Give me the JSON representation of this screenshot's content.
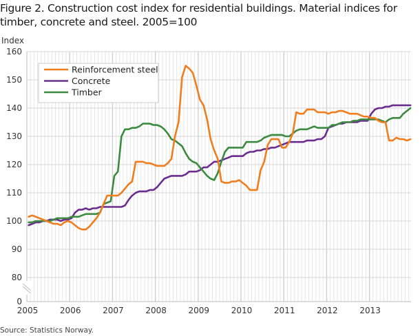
{
  "title": "Figure 2. Construction cost index for residential buildings. Material indices for timber, concrete and steel. 2005=100",
  "source": "Source: Statistics Norway.",
  "chart_data": {
    "type": "line",
    "title": "Figure 2. Construction cost index for residential buildings. Material indices for timber, concrete and steel. 2005=100",
    "ylabel": "Index",
    "xlabel": "",
    "ylim": [
      80,
      160
    ],
    "axis_break": "between 0 and 80",
    "yticks": [
      0,
      80,
      90,
      100,
      110,
      120,
      130,
      140,
      150,
      160
    ],
    "xticks": [
      "2005",
      "2006",
      "2007",
      "2008",
      "2009",
      "2010",
      "2011",
      "2012",
      "2013"
    ],
    "x_start": "2005-01",
    "x_frequency": "monthly",
    "grid": true,
    "legend": "top-left",
    "series": [
      {
        "name": "Reinforcement steel",
        "color": "#f07d1e",
        "values": [
          101.5,
          102,
          101.5,
          101,
          100.5,
          100,
          99.5,
          99,
          99,
          98.5,
          99.5,
          100,
          99.5,
          98.5,
          97.5,
          97,
          97,
          98,
          99.5,
          101,
          103,
          106,
          109,
          109,
          109,
          109,
          110,
          111.5,
          113,
          114,
          121,
          121,
          121,
          120.5,
          120.5,
          120,
          119.5,
          119.5,
          119.5,
          120.5,
          122,
          130,
          135,
          151,
          155,
          154,
          152.5,
          148,
          143,
          141,
          136,
          129,
          125,
          122,
          114,
          113.5,
          113.5,
          114,
          114,
          114.5,
          113.5,
          112.5,
          111,
          111,
          111,
          118,
          121,
          127,
          129,
          129,
          129,
          126,
          126,
          128,
          131,
          138.5,
          138,
          138,
          139.5,
          139.5,
          139.5,
          138.5,
          138.5,
          138.5,
          138,
          138.5,
          138.5,
          139,
          139,
          138.5,
          138,
          138,
          138,
          137.5,
          137,
          137,
          136.5,
          136.5,
          135.5,
          135,
          135,
          128.5,
          128.5,
          129.5,
          129,
          129,
          128.5,
          129
        ]
      },
      {
        "name": "Concrete",
        "color": "#6a2d8f",
        "values": [
          98.5,
          99,
          99.5,
          99.5,
          100,
          100,
          100.5,
          100.5,
          100.5,
          100,
          100.5,
          100.5,
          101,
          103,
          104,
          104,
          104.5,
          104,
          104.5,
          104.5,
          105,
          105,
          105,
          105,
          105,
          105,
          105,
          105.5,
          107.5,
          109,
          110,
          110.5,
          110.5,
          110.5,
          111,
          111,
          112,
          113.5,
          115,
          115.5,
          116,
          116,
          116,
          116,
          116.5,
          117.5,
          117.5,
          117.5,
          118,
          119,
          119,
          120,
          121,
          121,
          121.5,
          122,
          122.5,
          123,
          123,
          123,
          123,
          124,
          124.5,
          124.5,
          125,
          125,
          125.5,
          125.5,
          126,
          126,
          126.5,
          127,
          127.5,
          128,
          128,
          128,
          128,
          128,
          128.5,
          128.5,
          128.5,
          129,
          129,
          130,
          133,
          133.5,
          134,
          134.5,
          134.5,
          135,
          135,
          135,
          135,
          135.5,
          135.5,
          135.5,
          138,
          139.5,
          140,
          140,
          140.5,
          140.5,
          141,
          141,
          141,
          141,
          141,
          141
        ]
      },
      {
        "name": "Timber",
        "color": "#3b8a3f",
        "values": [
          99.5,
          99.5,
          100,
          100,
          100,
          100,
          100,
          100.5,
          101,
          101,
          101,
          101,
          101.5,
          101.5,
          101.5,
          102,
          102.5,
          102.5,
          102.5,
          102.5,
          103,
          106,
          106.5,
          107,
          116,
          117.5,
          130,
          132.5,
          132.5,
          133,
          133,
          133.5,
          134.5,
          134.5,
          134.5,
          134,
          134,
          133.5,
          132.5,
          131,
          129,
          128.5,
          127.5,
          126.5,
          124,
          122,
          121,
          120.5,
          119,
          117.5,
          116,
          115,
          114.5,
          117,
          121,
          124.5,
          126,
          126,
          126,
          126,
          126,
          128,
          128,
          128,
          128,
          128.5,
          129.5,
          130,
          130.5,
          130.5,
          130.5,
          130.5,
          130,
          130,
          131,
          132,
          132.5,
          132.5,
          132.5,
          133,
          133.5,
          133,
          133,
          133,
          133,
          134,
          134,
          134.5,
          135,
          135,
          135,
          135.5,
          135.5,
          136,
          136,
          136,
          136,
          136,
          136,
          135.5,
          135,
          136,
          136.5,
          136.5,
          136.5,
          138,
          139,
          140
        ]
      }
    ]
  }
}
